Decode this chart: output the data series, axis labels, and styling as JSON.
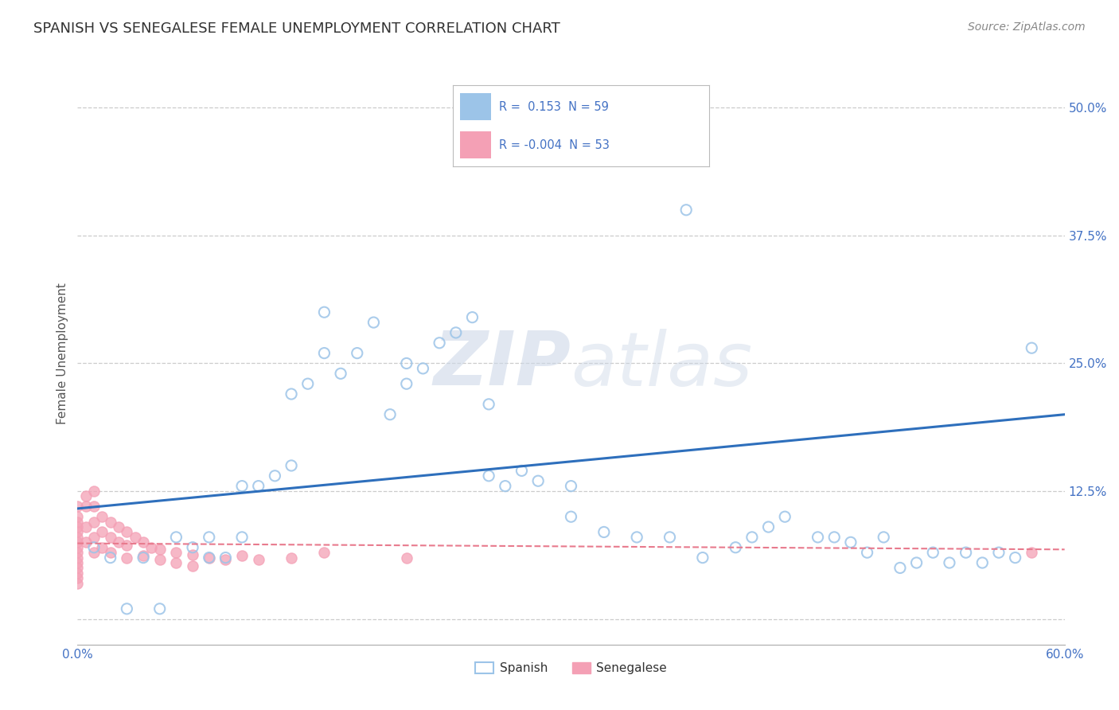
{
  "title": "SPANISH VS SENEGALESE FEMALE UNEMPLOYMENT CORRELATION CHART",
  "source_text": "Source: ZipAtlas.com",
  "ylabel": "Female Unemployment",
  "xlim": [
    0.0,
    0.6
  ],
  "ylim": [
    -0.025,
    0.545
  ],
  "yticks": [
    0.0,
    0.125,
    0.25,
    0.375,
    0.5
  ],
  "ytick_labels": [
    "",
    "12.5%",
    "25.0%",
    "37.5%",
    "50.0%"
  ],
  "xticks": [
    0.0,
    0.1,
    0.2,
    0.3,
    0.4,
    0.5,
    0.6
  ],
  "xtick_labels": [
    "0.0%",
    "",
    "",
    "",
    "",
    "",
    "60.0%"
  ],
  "spanish_r": 0.153,
  "spanish_n": 59,
  "senegalese_r": -0.004,
  "senegalese_n": 53,
  "spanish_color": "#9cc4e8",
  "senegalese_color": "#f4a0b5",
  "senegalese_fill_color": "#f4a0b5",
  "spanish_line_color": "#2e6fbc",
  "senegalese_line_color": "#e87a8d",
  "legend_text_color": "#4472c4",
  "watermark_color": "#cdd8e8",
  "background_color": "#ffffff",
  "grid_color": "#cccccc",
  "spanish_x": [
    0.03,
    0.05,
    0.06,
    0.07,
    0.08,
    0.09,
    0.1,
    0.11,
    0.12,
    0.13,
    0.14,
    0.15,
    0.16,
    0.17,
    0.18,
    0.19,
    0.2,
    0.21,
    0.22,
    0.23,
    0.24,
    0.25,
    0.26,
    0.27,
    0.28,
    0.3,
    0.32,
    0.34,
    0.36,
    0.37,
    0.38,
    0.4,
    0.41,
    0.42,
    0.43,
    0.45,
    0.46,
    0.47,
    0.48,
    0.49,
    0.5,
    0.51,
    0.52,
    0.53,
    0.54,
    0.55,
    0.56,
    0.57,
    0.01,
    0.02,
    0.04,
    0.08,
    0.1,
    0.13,
    0.15,
    0.2,
    0.25,
    0.3,
    0.58
  ],
  "spanish_y": [
    0.01,
    0.01,
    0.08,
    0.07,
    0.06,
    0.06,
    0.08,
    0.13,
    0.14,
    0.15,
    0.23,
    0.26,
    0.24,
    0.26,
    0.29,
    0.2,
    0.23,
    0.245,
    0.27,
    0.28,
    0.295,
    0.21,
    0.13,
    0.145,
    0.135,
    0.1,
    0.085,
    0.08,
    0.08,
    0.4,
    0.06,
    0.07,
    0.08,
    0.09,
    0.1,
    0.08,
    0.08,
    0.075,
    0.065,
    0.08,
    0.05,
    0.055,
    0.065,
    0.055,
    0.065,
    0.055,
    0.065,
    0.06,
    0.07,
    0.06,
    0.06,
    0.08,
    0.13,
    0.22,
    0.3,
    0.25,
    0.14,
    0.13,
    0.265
  ],
  "senegalese_x": [
    0.0,
    0.0,
    0.0,
    0.0,
    0.0,
    0.0,
    0.0,
    0.0,
    0.0,
    0.0,
    0.0,
    0.0,
    0.0,
    0.0,
    0.0,
    0.005,
    0.005,
    0.005,
    0.005,
    0.01,
    0.01,
    0.01,
    0.01,
    0.01,
    0.015,
    0.015,
    0.015,
    0.02,
    0.02,
    0.02,
    0.025,
    0.025,
    0.03,
    0.03,
    0.03,
    0.035,
    0.04,
    0.04,
    0.045,
    0.05,
    0.05,
    0.06,
    0.06,
    0.07,
    0.07,
    0.08,
    0.09,
    0.1,
    0.11,
    0.13,
    0.15,
    0.2,
    0.58
  ],
  "senegalese_y": [
    0.11,
    0.1,
    0.095,
    0.09,
    0.085,
    0.08,
    0.075,
    0.07,
    0.065,
    0.06,
    0.055,
    0.05,
    0.045,
    0.04,
    0.035,
    0.12,
    0.11,
    0.09,
    0.075,
    0.125,
    0.11,
    0.095,
    0.08,
    0.065,
    0.1,
    0.085,
    0.07,
    0.095,
    0.08,
    0.065,
    0.09,
    0.075,
    0.085,
    0.072,
    0.06,
    0.08,
    0.075,
    0.062,
    0.07,
    0.068,
    0.058,
    0.065,
    0.055,
    0.063,
    0.052,
    0.06,
    0.058,
    0.062,
    0.058,
    0.06,
    0.065,
    0.06,
    0.065
  ]
}
